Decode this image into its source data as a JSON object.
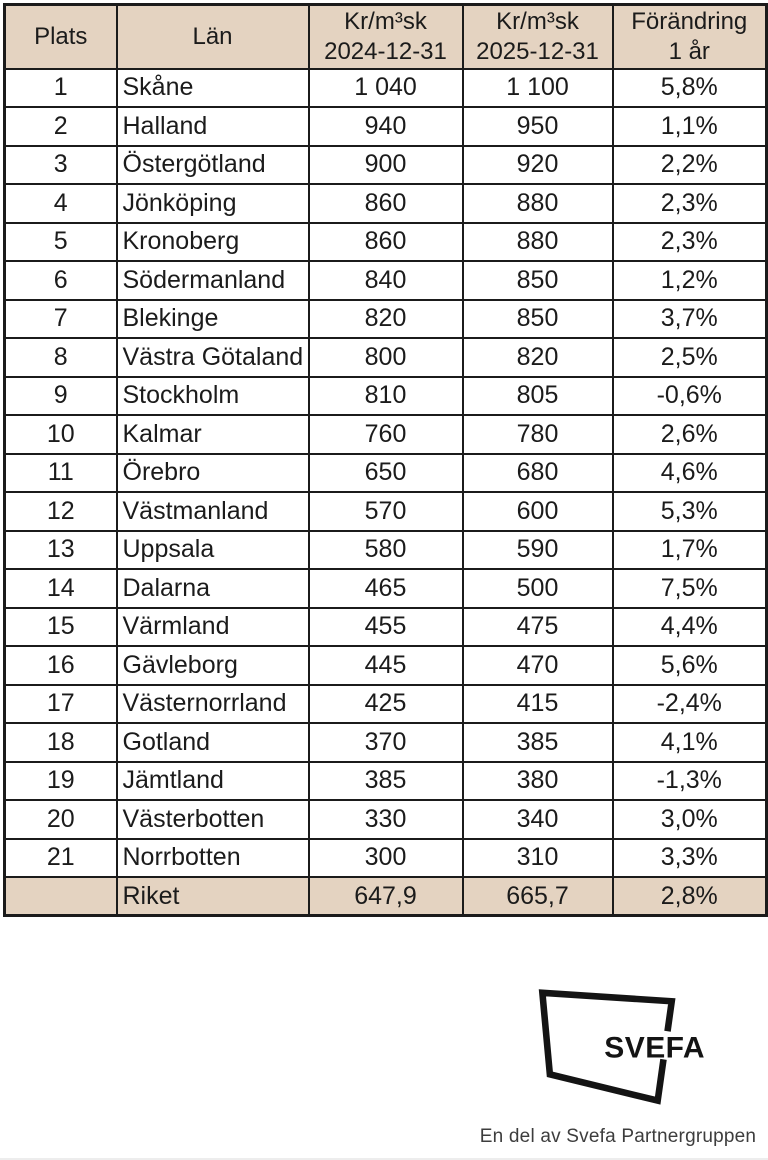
{
  "chart_data": {
    "type": "table",
    "columns": [
      "Plats",
      "Län",
      "Kr/m³sk 2024-12-31",
      "Kr/m³sk 2025-12-31",
      "Förändring 1 år"
    ],
    "column_header_lines": [
      [
        "Plats"
      ],
      [
        "Län"
      ],
      [
        "Kr/m³sk",
        "2024-12-31"
      ],
      [
        "Kr/m³sk",
        "2025-12-31"
      ],
      [
        "Förändring",
        "1 år"
      ]
    ],
    "rows": [
      [
        "1",
        "Skåne",
        "1 040",
        "1 100",
        "5,8%"
      ],
      [
        "2",
        "Halland",
        "940",
        "950",
        "1,1%"
      ],
      [
        "3",
        "Östergötland",
        "900",
        "920",
        "2,2%"
      ],
      [
        "4",
        "Jönköping",
        "860",
        "880",
        "2,3%"
      ],
      [
        "5",
        "Kronoberg",
        "860",
        "880",
        "2,3%"
      ],
      [
        "6",
        "Södermanland",
        "840",
        "850",
        "1,2%"
      ],
      [
        "7",
        "Blekinge",
        "820",
        "850",
        "3,7%"
      ],
      [
        "8",
        "Västra Götaland",
        "800",
        "820",
        "2,5%"
      ],
      [
        "9",
        "Stockholm",
        "810",
        "805",
        "-0,6%"
      ],
      [
        "10",
        "Kalmar",
        "760",
        "780",
        "2,6%"
      ],
      [
        "11",
        "Örebro",
        "650",
        "680",
        "4,6%"
      ],
      [
        "12",
        "Västmanland",
        "570",
        "600",
        "5,3%"
      ],
      [
        "13",
        "Uppsala",
        "580",
        "590",
        "1,7%"
      ],
      [
        "14",
        "Dalarna",
        "465",
        "500",
        "7,5%"
      ],
      [
        "15",
        "Värmland",
        "455",
        "475",
        "4,4%"
      ],
      [
        "16",
        "Gävleborg",
        "445",
        "470",
        "5,6%"
      ],
      [
        "17",
        "Västernorrland",
        "425",
        "415",
        "-2,4%"
      ],
      [
        "18",
        "Gotland",
        "370",
        "385",
        "4,1%"
      ],
      [
        "19",
        "Jämtland",
        "385",
        "380",
        "-1,3%"
      ],
      [
        "20",
        "Västerbotten",
        "330",
        "340",
        "3,0%"
      ],
      [
        "21",
        "Norrbotten",
        "300",
        "310",
        "3,3%"
      ]
    ],
    "footer_row": [
      "",
      "Riket",
      "647,9",
      "665,7",
      "2,8%"
    ]
  },
  "logo": {
    "brand": "SVEFA",
    "tagline": "En del av Svefa Partnergruppen"
  },
  "colors": {
    "header_bg": "#e4d3c1",
    "border": "#1b1b1b",
    "text": "#1b1b1b",
    "tagline_text": "#3d3d3d"
  }
}
